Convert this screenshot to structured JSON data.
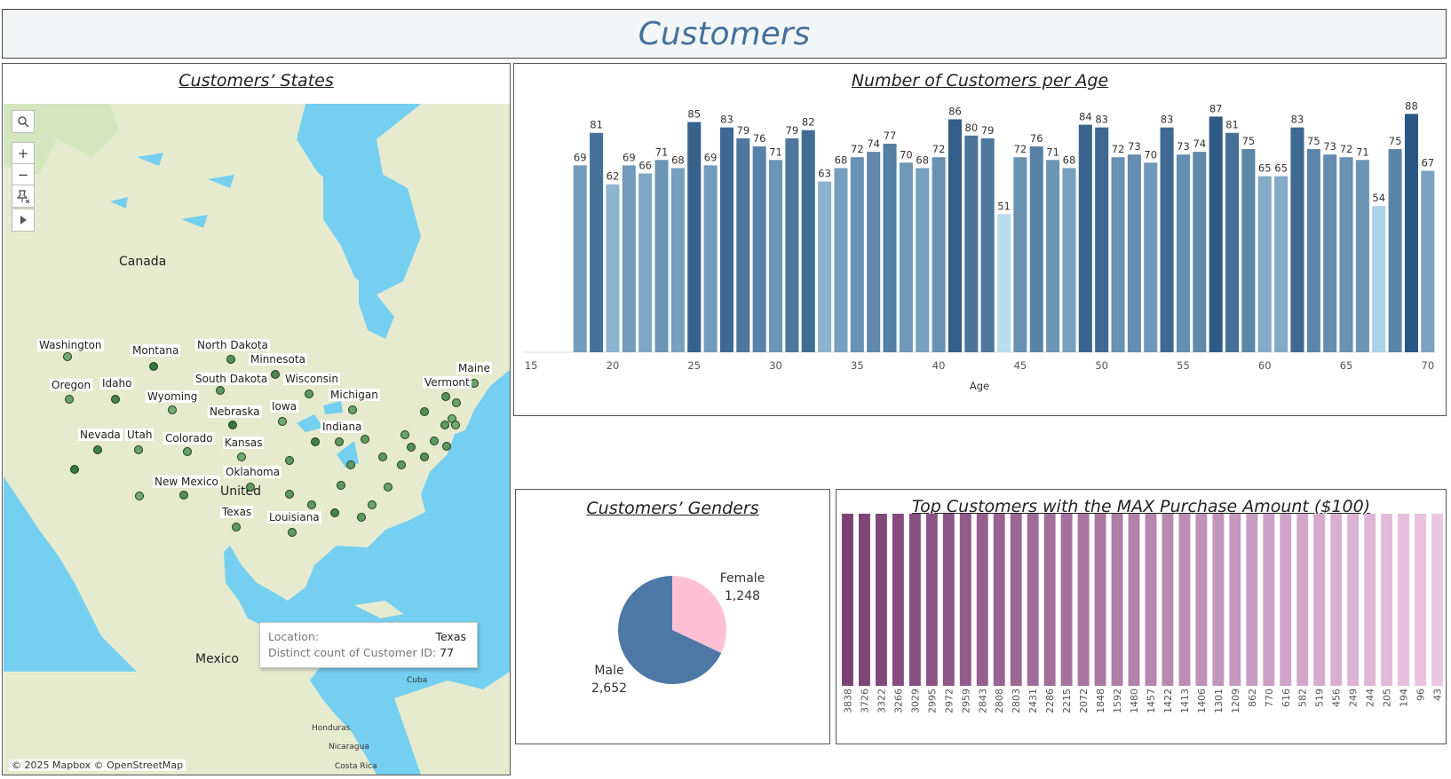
{
  "dashboard": {
    "title": "Customers"
  },
  "map": {
    "title": "Customers’ States",
    "country_labels": [
      "Canada",
      "United",
      "Mexico"
    ],
    "sea_labels": [
      "Cuba",
      "Honduras",
      "Nicaragua",
      "Costa Rica"
    ],
    "state_labels": [
      "Washington",
      "Montana",
      "North Dakota",
      "Minnesota",
      "Oregon",
      "Idaho",
      "South Dakota",
      "Wisconsin",
      "Wyoming",
      "Michigan",
      "Maine",
      "Vermont",
      "Nebraska",
      "Iowa",
      "Indiana",
      "Nevada",
      "Utah",
      "Colorado",
      "Kansas",
      "Oklahoma",
      "New Mexico",
      "Texas",
      "Louisiana"
    ],
    "tooltip": {
      "location_label": "Location:",
      "location_value": "Texas",
      "count_label": "Distinct count of Customer ID:",
      "count_value": "77"
    },
    "credit": "© 2025 Mapbox © OpenStreetMap",
    "tools": {
      "search": "search-icon",
      "zoom_in": "+",
      "zoom_out": "−",
      "pin": "pin-icon",
      "play": "play-icon"
    },
    "colors": {
      "water": "#75cff0",
      "land": "#e8ecd4",
      "marker_dark": "#2d6e3a",
      "marker_light": "#8fc583"
    }
  },
  "chart_data": [
    {
      "type": "bar",
      "title": "Number of Customers per Age",
      "xlabel": "Age",
      "ylabel": "",
      "x": [
        18,
        19,
        20,
        21,
        22,
        23,
        24,
        25,
        26,
        27,
        28,
        29,
        30,
        31,
        32,
        33,
        34,
        35,
        36,
        37,
        38,
        39,
        40,
        41,
        42,
        43,
        44,
        45,
        46,
        47,
        48,
        49,
        50,
        51,
        52,
        53,
        54,
        55,
        56,
        57,
        58,
        59,
        60,
        61,
        62,
        63,
        64,
        65,
        66,
        67,
        68,
        69,
        70
      ],
      "values": [
        69,
        81,
        62,
        69,
        66,
        71,
        68,
        85,
        69,
        83,
        79,
        76,
        71,
        79,
        82,
        63,
        68,
        72,
        74,
        77,
        70,
        68,
        72,
        86,
        80,
        79,
        51,
        72,
        76,
        71,
        68,
        84,
        83,
        72,
        73,
        70,
        83,
        73,
        74,
        87,
        81,
        75,
        65,
        65,
        83,
        75,
        73,
        72,
        71,
        54,
        75,
        88,
        67
      ],
      "x_ticks": [
        15,
        20,
        25,
        30,
        35,
        40,
        45,
        50,
        55,
        60,
        65,
        70
      ],
      "xlim": [
        14.5,
        70.5
      ],
      "ylim": [
        0,
        95
      ],
      "color_scale": {
        "low": "#b9dcf0",
        "high": "#2a5783"
      }
    },
    {
      "type": "pie",
      "title": "Customers’ Genders",
      "categories": [
        "Female",
        "Male"
      ],
      "values": [
        1248,
        2652
      ],
      "value_labels": [
        "1,248",
        "2,652"
      ],
      "colors": [
        "#ffc0d5",
        "#4e79a7"
      ]
    },
    {
      "type": "bar",
      "title": "Top Customers with the MAX Purchase Amount ($100)",
      "categories": [
        "3838",
        "3726",
        "3322",
        "3266",
        "3029",
        "2995",
        "2972",
        "2959",
        "2843",
        "2808",
        "2803",
        "2431",
        "2286",
        "2215",
        "2072",
        "1848",
        "1592",
        "1480",
        "1457",
        "1422",
        "1413",
        "1406",
        "1301",
        "1209",
        "862",
        "770",
        "616",
        "582",
        "519",
        "456",
        "249",
        "244",
        "205",
        "194",
        "96",
        "43"
      ],
      "values": [
        100,
        100,
        100,
        100,
        100,
        100,
        100,
        100,
        100,
        100,
        100,
        100,
        100,
        100,
        100,
        100,
        100,
        100,
        100,
        100,
        100,
        100,
        100,
        100,
        100,
        100,
        100,
        100,
        100,
        100,
        100,
        100,
        100,
        100,
        100,
        100
      ],
      "ylim": [
        0,
        100
      ],
      "color_scale": {
        "start": "#7b4173",
        "end": "#ecc6e4"
      }
    }
  ]
}
